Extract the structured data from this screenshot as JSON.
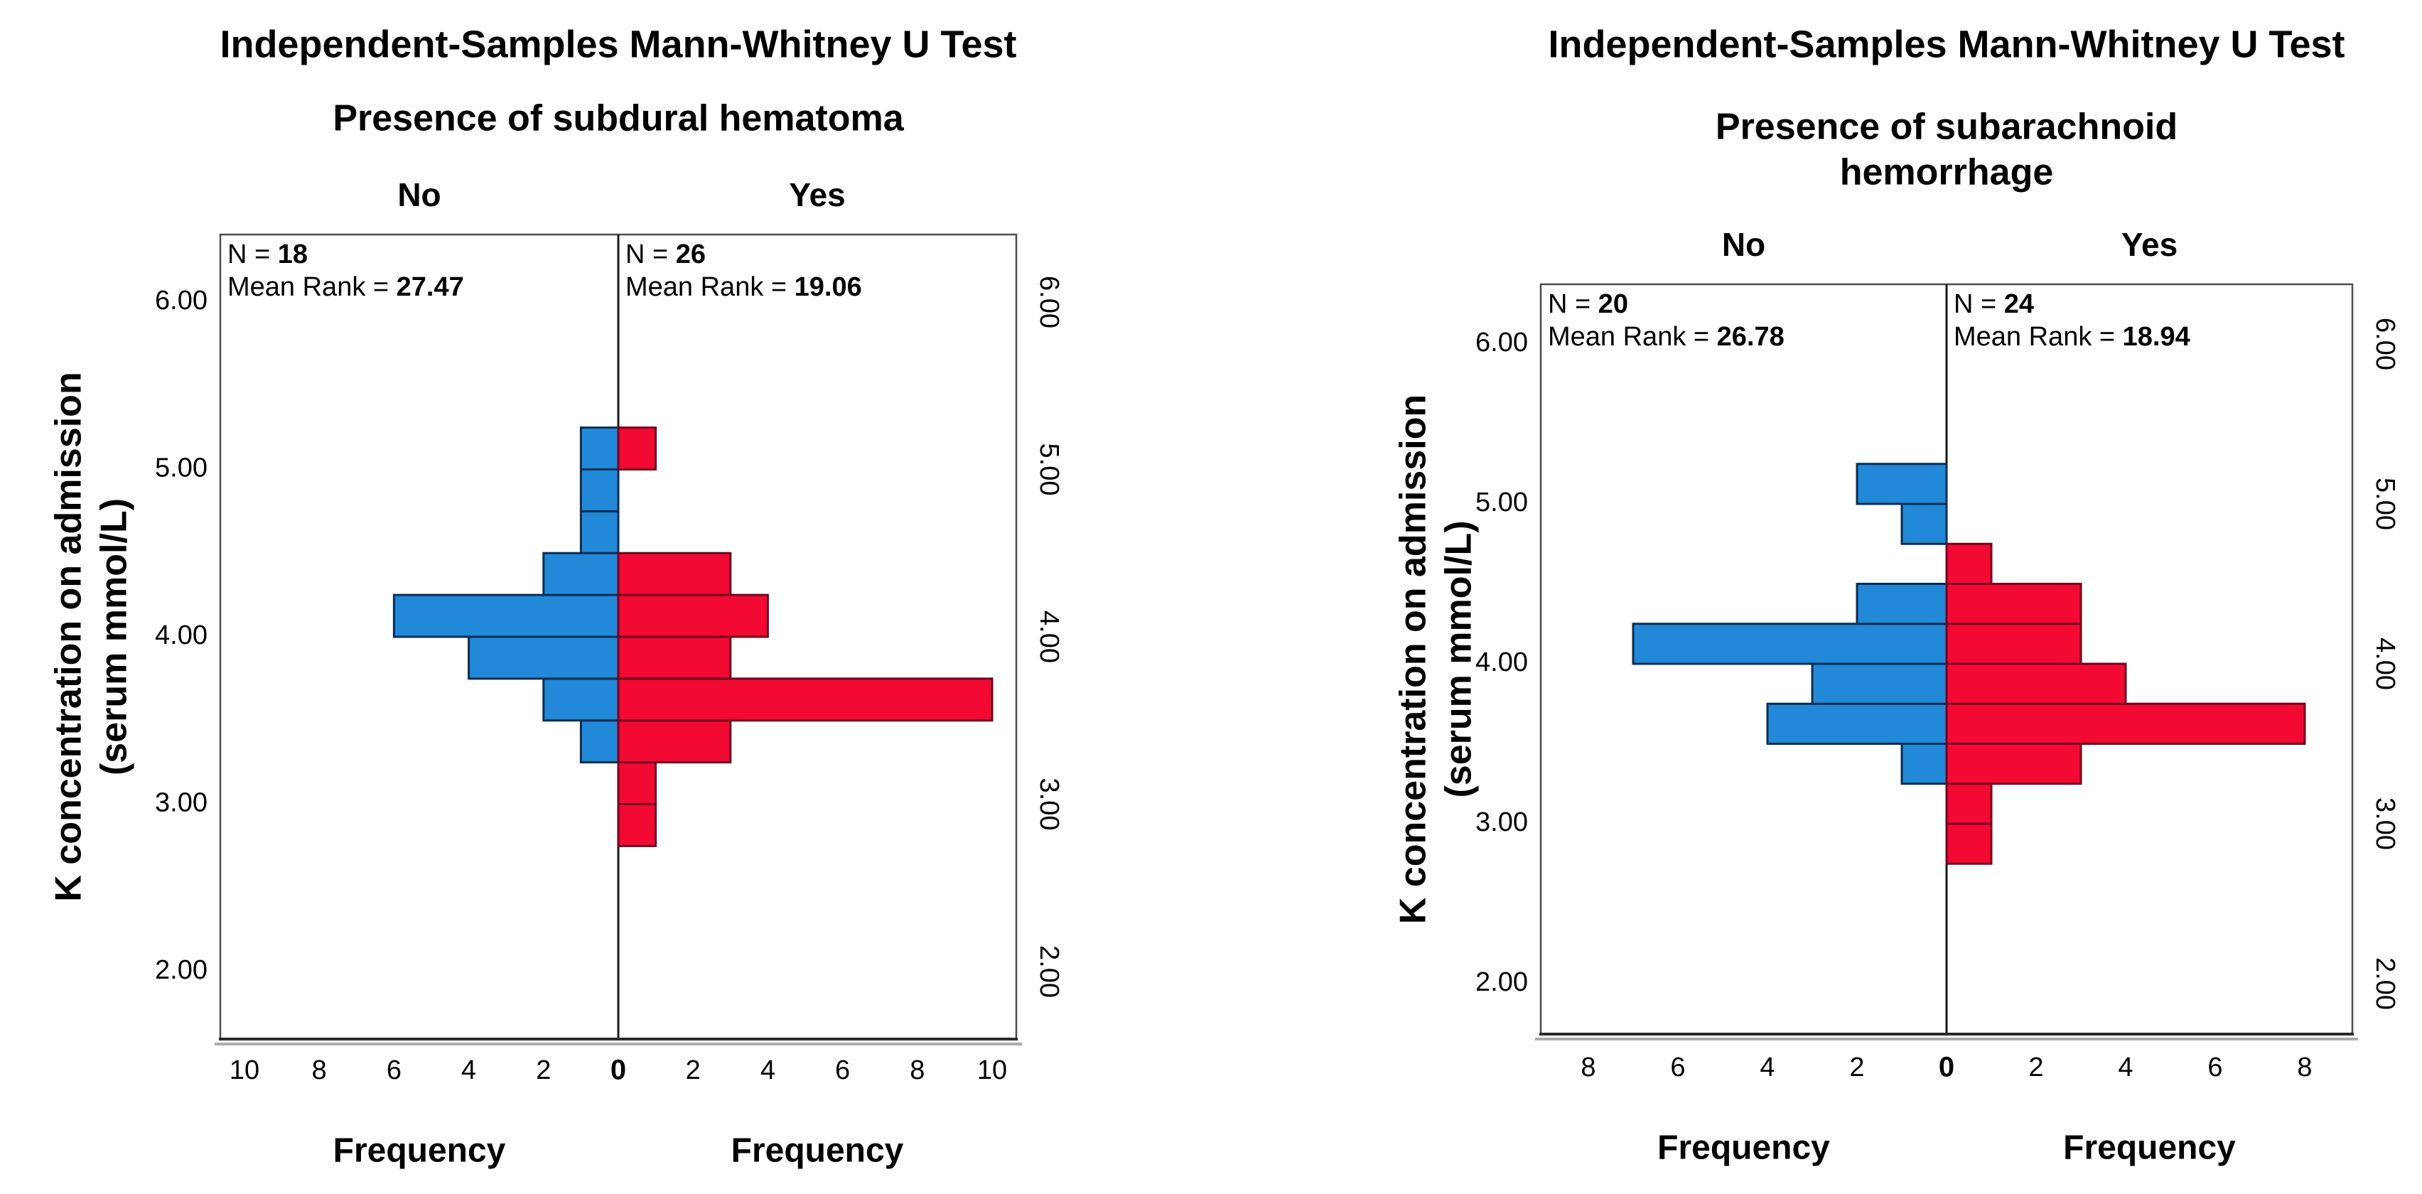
{
  "page": {
    "background": "#ffffff"
  },
  "charts": [
    {
      "title": "Independent-Samples Mann-Whitney U Test",
      "subtitle_lines": [
        "Presence of subdural hematoma"
      ],
      "group_labels": [
        "No",
        "Yes"
      ],
      "annotations": [
        {
          "n_label": "N = ",
          "n_value": "18",
          "rank_label": "Mean Rank = ",
          "rank_value": "27.47"
        },
        {
          "n_label": "N = ",
          "n_value": "26",
          "rank_label": "Mean Rank = ",
          "rank_value": "19.06"
        }
      ],
      "y_axis_title_lines": [
        "K concentration on admission",
        "(serum mmol/L)"
      ],
      "x_axis_label_left": "Frequency",
      "x_axis_label_right": "Frequency",
      "y_tick_labels": [
        "6.00",
        "5.00",
        "4.00",
        "3.00",
        "2.00"
      ],
      "x_tick_labels_left": [
        "10",
        "8",
        "6",
        "4",
        "2"
      ],
      "x_tick_zero": "0",
      "x_tick_labels_right": [
        "2",
        "4",
        "6",
        "8",
        "10"
      ]
    },
    {
      "title": "Independent-Samples Mann-Whitney U Test",
      "subtitle_lines": [
        "Presence of subarachnoid",
        "hemorrhage"
      ],
      "group_labels": [
        "No",
        "Yes"
      ],
      "annotations": [
        {
          "n_label": "N = ",
          "n_value": "20",
          "rank_label": "Mean Rank = ",
          "rank_value": "26.78"
        },
        {
          "n_label": "N = ",
          "n_value": "24",
          "rank_label": "Mean Rank = ",
          "rank_value": "18.94"
        }
      ],
      "y_axis_title_lines": [
        "K concentration on admission",
        "(serum mmol/L)"
      ],
      "x_axis_label_left": "Frequency",
      "x_axis_label_right": "Frequency",
      "y_tick_labels": [
        "6.00",
        "5.00",
        "4.00",
        "3.00",
        "2.00"
      ],
      "x_tick_labels_left": [
        "8",
        "6",
        "4",
        "2"
      ],
      "x_tick_zero": "0",
      "x_tick_labels_right": [
        "2",
        "4",
        "6",
        "8"
      ]
    }
  ],
  "chart_data": [
    {
      "type": "bar",
      "variant": "population-pyramid-histogram",
      "title": "Independent-Samples Mann-Whitney U Test",
      "subtitle": "Presence of subdural hematoma",
      "xlabel": "Frequency",
      "ylabel": "K concentration on admission (serum mmol/L)",
      "bin_width": 0.25,
      "bins_lower_edge": [
        2.75,
        3.0,
        3.25,
        3.5,
        3.75,
        4.0,
        4.25,
        4.5,
        4.75,
        5.0
      ],
      "series": [
        {
          "name": "No",
          "side": "left",
          "color": "#2189D8",
          "edge_color": "#0C2D52",
          "N": 18,
          "mean_rank": 27.47,
          "values": [
            0,
            0,
            1,
            2,
            4,
            6,
            2,
            1,
            1,
            1
          ]
        },
        {
          "name": "Yes",
          "side": "right",
          "color": "#F20A33",
          "edge_color": "#73001F",
          "N": 26,
          "mean_rank": 19.06,
          "values": [
            1,
            1,
            3,
            10,
            3,
            4,
            3,
            0,
            0,
            1
          ]
        }
      ],
      "x_ticks_each_side": [
        2,
        4,
        6,
        8,
        10
      ],
      "x_max_each_side": 10.6,
      "y_ticks": [
        6.0,
        5.0,
        4.0,
        3.0,
        2.0
      ],
      "ylim": [
        1.6,
        6.4
      ],
      "grid": false,
      "legend": "none"
    },
    {
      "type": "bar",
      "variant": "population-pyramid-histogram",
      "title": "Independent-Samples Mann-Whitney U Test",
      "subtitle": "Presence of subarachnoid hemorrhage",
      "xlabel": "Frequency",
      "ylabel": "K concentration on admission (serum mmol/L)",
      "bin_width": 0.25,
      "bins_lower_edge": [
        2.75,
        3.0,
        3.25,
        3.5,
        3.75,
        4.0,
        4.25,
        4.5,
        4.75,
        5.0
      ],
      "series": [
        {
          "name": "No",
          "side": "left",
          "color": "#2189D8",
          "edge_color": "#0C2D52",
          "N": 20,
          "mean_rank": 26.78,
          "values": [
            0,
            0,
            1,
            4,
            3,
            7,
            2,
            0,
            1,
            2
          ]
        },
        {
          "name": "Yes",
          "side": "right",
          "color": "#F20A33",
          "edge_color": "#73001F",
          "N": 24,
          "mean_rank": 18.94,
          "values": [
            1,
            1,
            3,
            8,
            4,
            3,
            3,
            1,
            0,
            0
          ]
        }
      ],
      "x_ticks_each_side": [
        2,
        4,
        6,
        8
      ],
      "x_max_each_side": 9.1,
      "y_ticks": [
        6.0,
        5.0,
        4.0,
        3.0,
        2.0
      ],
      "ylim": [
        1.6,
        6.4
      ],
      "grid": false,
      "legend": "none"
    }
  ],
  "colors": {
    "no_bar_fill": "#2189D8",
    "no_bar_edge": "#0C2D52",
    "yes_bar_fill": "#F20A33",
    "yes_bar_edge": "#73001F",
    "plot_border": "#4D4D4D",
    "divider": "#1A1A1A",
    "baseline_shadow": "#ABABAB",
    "text": "#000000"
  }
}
